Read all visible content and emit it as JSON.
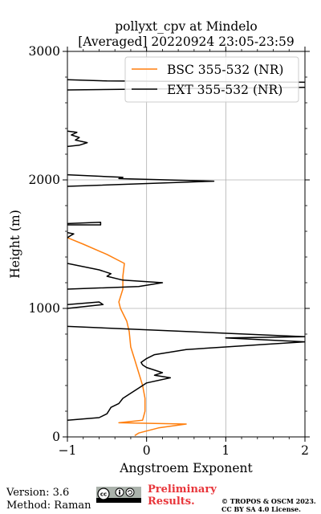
{
  "chart_data": {
    "type": "line",
    "title_line1": "pollyxt_cpv at Mindelo",
    "title_line2": "[Averaged] 20220924 23:05-23:59",
    "xlabel": "Angstroem Exponent",
    "ylabel": "Height (m)",
    "xlim": [
      -1,
      2
    ],
    "ylim": [
      0,
      3000
    ],
    "x_ticks": [
      -1,
      0,
      1,
      2
    ],
    "x_tick_labels": [
      "−1",
      "0",
      "1",
      "2"
    ],
    "y_ticks": [
      0,
      1000,
      2000,
      3000
    ],
    "y_tick_labels": [
      "0",
      "1000",
      "2000",
      "3000"
    ],
    "grid": true,
    "legend_position": "top-right",
    "series": [
      {
        "name": "BSC 355-532 (NR)",
        "color": "#ff7f0e",
        "points": [
          [
            -0.15,
            10
          ],
          [
            -0.1,
            30
          ],
          [
            0.15,
            70
          ],
          [
            0.5,
            100
          ],
          [
            -0.35,
            110
          ],
          [
            -0.05,
            130
          ],
          [
            -0.02,
            200
          ],
          [
            -0.02,
            300
          ],
          [
            -0.05,
            400
          ],
          [
            -0.1,
            500
          ],
          [
            -0.15,
            600
          ],
          [
            -0.2,
            700
          ],
          [
            -0.22,
            820
          ],
          [
            -0.25,
            900
          ],
          [
            -0.33,
            1000
          ],
          [
            -0.35,
            1050
          ],
          [
            -0.3,
            1150
          ],
          [
            -0.3,
            1250
          ],
          [
            -0.28,
            1350
          ],
          [
            -0.5,
            1420
          ],
          [
            -0.8,
            1500
          ],
          [
            -1.0,
            1550
          ]
        ]
      },
      {
        "name": "EXT 355-532 (NR)",
        "color": "#000000",
        "points": [
          [
            -1.0,
            130
          ],
          [
            -0.6,
            150
          ],
          [
            -0.5,
            180
          ],
          [
            -0.45,
            230
          ],
          [
            -0.35,
            260
          ],
          [
            -0.3,
            300
          ],
          [
            -0.2,
            340
          ],
          [
            -0.1,
            380
          ],
          [
            0.0,
            420
          ],
          [
            0.3,
            460
          ],
          [
            0.1,
            480
          ],
          [
            0.2,
            500
          ],
          [
            0.0,
            540
          ],
          [
            -0.05,
            560
          ],
          [
            -0.07,
            580
          ],
          [
            0.0,
            610
          ],
          [
            0.1,
            640
          ],
          [
            0.5,
            680
          ],
          [
            1.0,
            700
          ],
          [
            1.5,
            720
          ],
          [
            2.0,
            740
          ],
          [
            1.0,
            770
          ],
          [
            2.0,
            780
          ],
          [
            0.5,
            820
          ],
          [
            -1.0,
            860
          ]
        ]
      }
    ],
    "ext_segments": [
      [
        [
          -1.0,
          1000
        ],
        [
          -0.55,
          1030
        ],
        [
          -0.6,
          1050
        ],
        [
          -1.0,
          1030
        ]
      ],
      [
        [
          -1.0,
          1150
        ],
        [
          -0.1,
          1170
        ],
        [
          0.2,
          1200
        ],
        [
          -0.3,
          1220
        ],
        [
          -0.5,
          1250
        ],
        [
          -0.45,
          1270
        ],
        [
          -0.6,
          1300
        ],
        [
          -1.0,
          1350
        ]
      ],
      [
        [
          -1.0,
          1550
        ],
        [
          -0.95,
          1570
        ],
        [
          -0.92,
          1580
        ],
        [
          -1.0,
          1590
        ]
      ],
      [
        [
          -1.0,
          1650
        ],
        [
          -0.58,
          1650
        ],
        [
          -0.58,
          1670
        ],
        [
          -1.0,
          1660
        ]
      ],
      [
        [
          -1.0,
          1950
        ],
        [
          0.85,
          1990
        ],
        [
          -0.35,
          2010
        ],
        [
          -0.3,
          2020
        ],
        [
          -1.0,
          2040
        ]
      ],
      [
        [
          -1.0,
          2260
        ],
        [
          -0.85,
          2270
        ],
        [
          -0.75,
          2290
        ],
        [
          -0.9,
          2310
        ],
        [
          -0.85,
          2330
        ],
        [
          -0.95,
          2350
        ],
        [
          -0.88,
          2370
        ],
        [
          -1.0,
          2380
        ]
      ],
      [
        [
          -1.0,
          2700
        ],
        [
          2.0,
          2720
        ]
      ],
      [
        [
          -1.0,
          2780
        ],
        [
          -0.5,
          2770
        ],
        [
          2.0,
          2760
        ]
      ]
    ]
  },
  "footer": {
    "version": "Version: 3.6",
    "method": "Method: Raman",
    "preliminary_line1": "Preliminary",
    "preliminary_line2": "Results.",
    "copyright_line1": "© TROPOS & OSCM 2023.",
    "copyright_line2": "CC BY SA 4.0 License."
  }
}
